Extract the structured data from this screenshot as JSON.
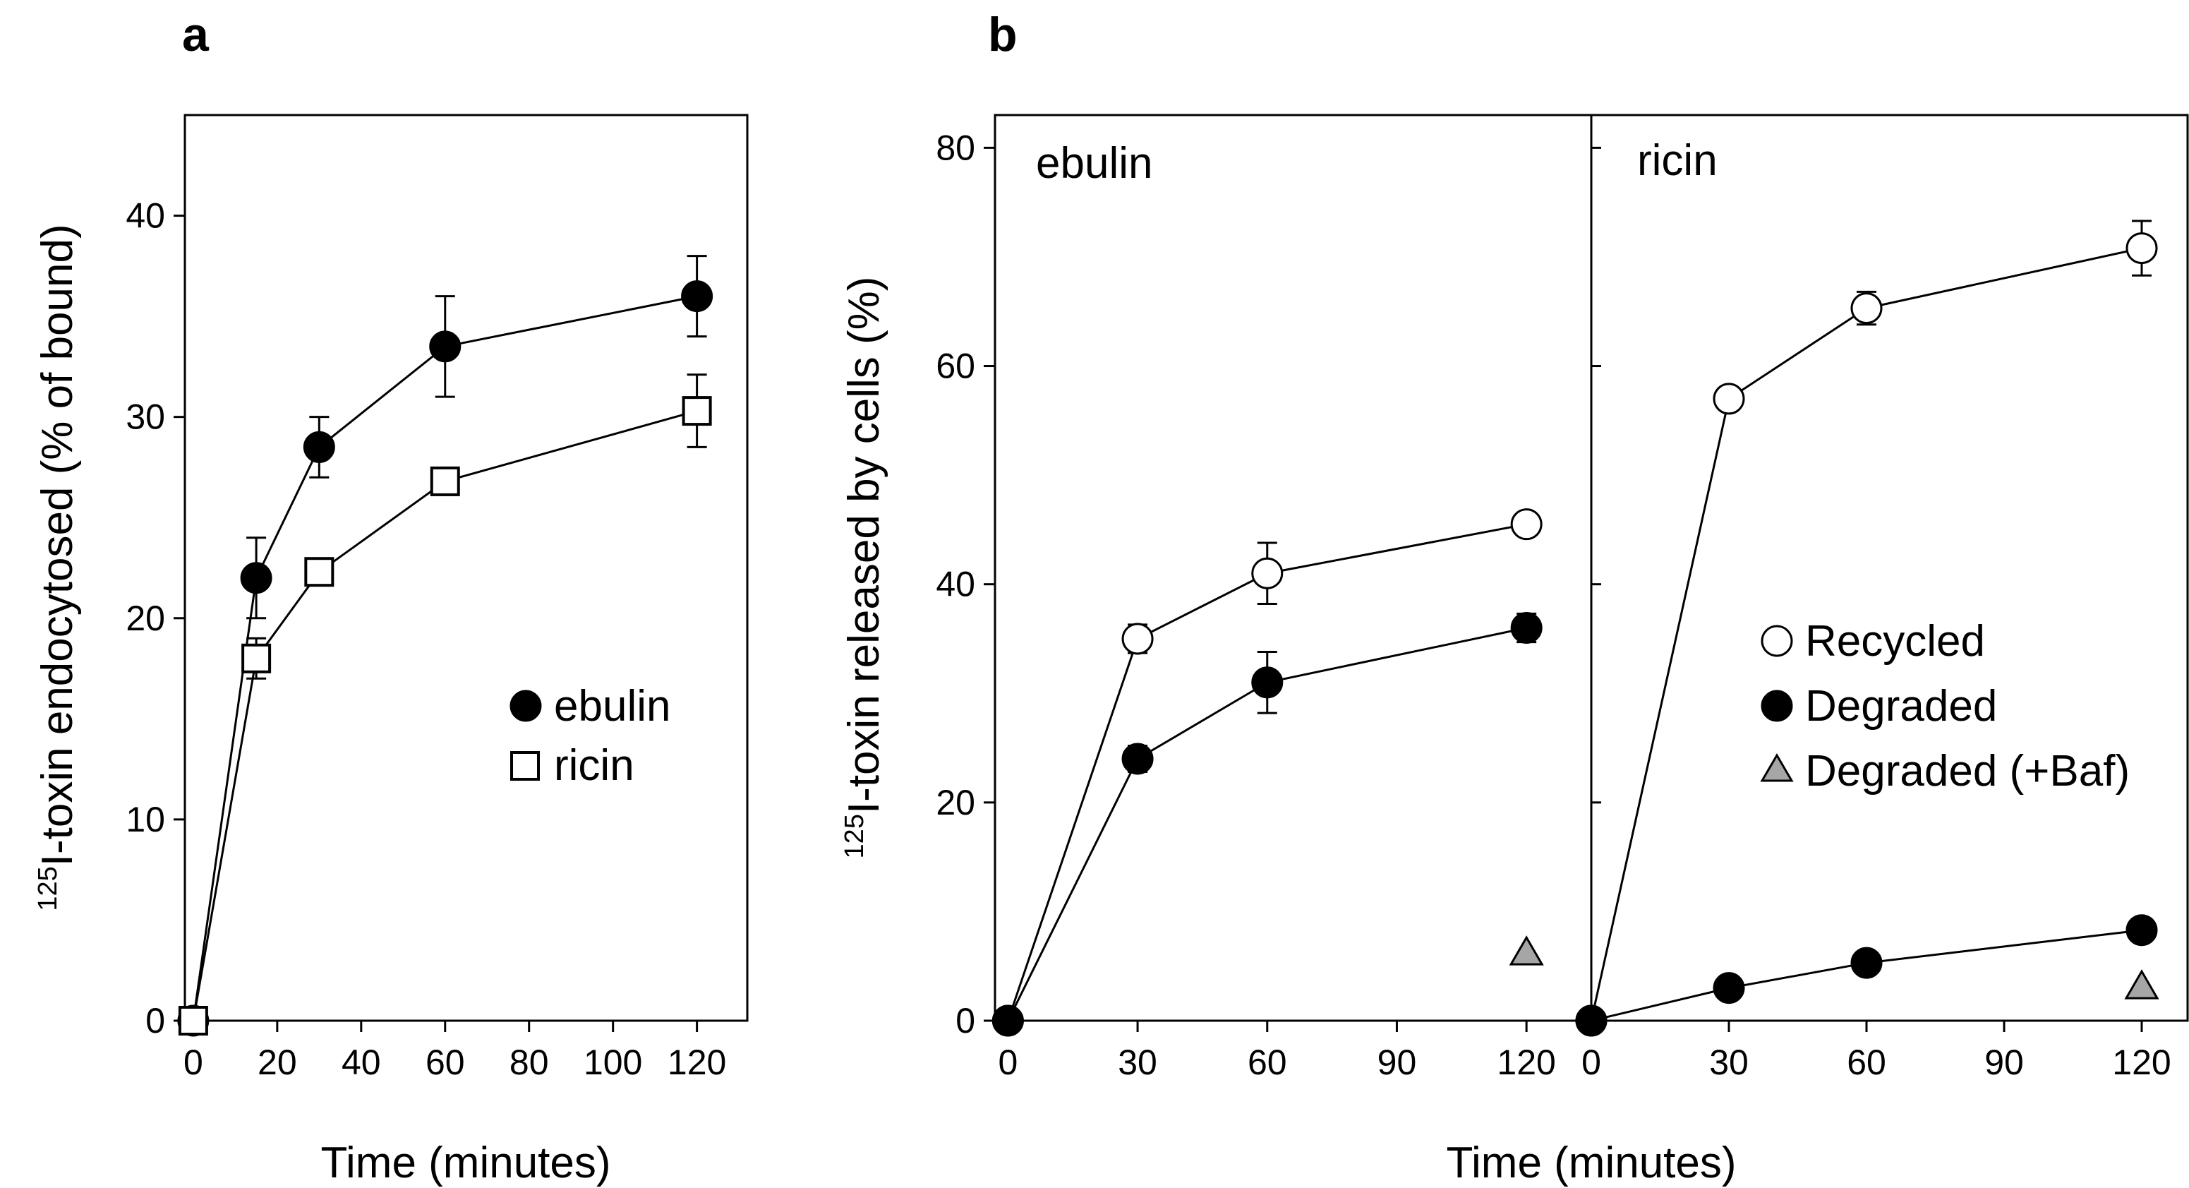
{
  "figure": {
    "panel_a_letter": "a",
    "panel_b_letter": "b"
  },
  "chart_data": [
    {
      "id": "a",
      "type": "line",
      "title": "",
      "xlabel": "Time (minutes)",
      "ylabel_sup": "125",
      "ylabel": "I-toxin endocytosed (% of bound)",
      "xlim": [
        -2,
        132
      ],
      "ylim": [
        0,
        45
      ],
      "xticks": [
        0,
        20,
        40,
        60,
        80,
        100,
        120
      ],
      "yticks": [
        0,
        10,
        20,
        30,
        40
      ],
      "legend_position": "center-right",
      "series": [
        {
          "name": "ebulin",
          "marker": "filled-circle",
          "x": [
            0,
            15,
            30,
            60,
            120
          ],
          "y": [
            0,
            22,
            28.5,
            33.5,
            36
          ],
          "err": [
            0,
            2,
            1.5,
            2.5,
            2
          ]
        },
        {
          "name": "ricin",
          "marker": "open-square",
          "x": [
            0,
            15,
            30,
            60,
            120
          ],
          "y": [
            0,
            18,
            22.3,
            26.8,
            30.3
          ],
          "err": [
            0,
            1,
            0,
            0,
            1.8
          ]
        }
      ]
    },
    {
      "id": "b-ebulin",
      "type": "line",
      "panel_label": "ebulin",
      "xlabel": "Time (minutes)",
      "ylabel_sup": "125",
      "ylabel": "I-toxin released by cells (%)",
      "xlim": [
        -3,
        135
      ],
      "ylim": [
        0,
        83
      ],
      "xticks": [
        0,
        30,
        60,
        90,
        120
      ],
      "yticks": [
        0,
        20,
        40,
        60,
        80
      ],
      "series": [
        {
          "name": "Recycled",
          "marker": "open-circle",
          "x": [
            0,
            30,
            60,
            120
          ],
          "y": [
            0,
            35,
            41,
            45.5
          ],
          "err": [
            0,
            1.3,
            2.8,
            0
          ]
        },
        {
          "name": "Degraded",
          "marker": "filled-circle",
          "x": [
            0,
            30,
            60,
            120
          ],
          "y": [
            0,
            24,
            31,
            36
          ],
          "err": [
            0,
            1.2,
            2.8,
            1.3
          ]
        },
        {
          "name": "Degraded (+Baf)",
          "marker": "gray-triangle",
          "x": [
            120
          ],
          "y": [
            6.2
          ],
          "err": [
            0
          ]
        }
      ]
    },
    {
      "id": "b-ricin",
      "type": "line",
      "panel_label": "ricin",
      "xlabel": "Time (minutes)",
      "xlim": [
        0,
        130
      ],
      "ylim": [
        0,
        83
      ],
      "xticks": [
        0,
        30,
        60,
        90,
        120
      ],
      "yticks": [
        0,
        20,
        40,
        60,
        80
      ],
      "legend_position": "center-right",
      "series": [
        {
          "name": "Recycled",
          "marker": "open-circle",
          "x": [
            0,
            30,
            60,
            120
          ],
          "y": [
            0,
            57,
            65.3,
            70.8
          ],
          "err": [
            0,
            0,
            1.5,
            2.5
          ]
        },
        {
          "name": "Degraded",
          "marker": "filled-circle",
          "x": [
            0,
            30,
            60,
            120
          ],
          "y": [
            0,
            3,
            5.3,
            8.3
          ],
          "err": [
            0,
            0,
            0,
            0
          ]
        },
        {
          "name": "Degraded (+Baf)",
          "marker": "gray-triangle",
          "x": [
            120
          ],
          "y": [
            3.1
          ],
          "err": [
            0
          ]
        }
      ]
    }
  ],
  "colors": {
    "axis": "#000000",
    "line": "#000000",
    "filled_marker": "#000000",
    "open_marker_fill": "#ffffff",
    "triangle_fill": "#a6a6a6"
  }
}
